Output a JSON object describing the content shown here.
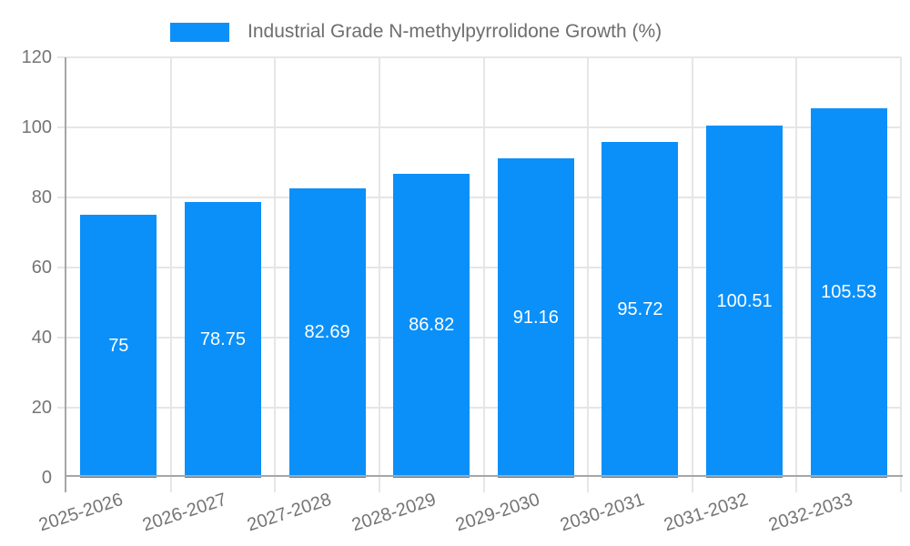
{
  "colors": {
    "bar": "#0b90f9",
    "axis_line": "#a6a6a6",
    "gridline": "#e6e6e6",
    "axis_label_text": "#757575",
    "legend_text": "#6e6e6e",
    "value_label_text": "#ffffff",
    "background": "#ffffff"
  },
  "legend": {
    "label": "Industrial Grade N-methylpyrrolidone Growth (%)"
  },
  "chart_data": {
    "type": "bar",
    "title": "Industrial Grade N-methylpyrrolidone Growth (%)",
    "categories": [
      "2025-2026",
      "2026-2027",
      "2027-2028",
      "2028-2029",
      "2029-2030",
      "2030-2031",
      "2031-2032",
      "2032-2033"
    ],
    "series": [
      {
        "name": "Industrial Grade N-methylpyrrolidone Growth (%)",
        "values": [
          75,
          78.75,
          82.69,
          86.82,
          91.16,
          95.72,
          100.51,
          105.53
        ],
        "value_labels": [
          "75",
          "78.75",
          "82.69",
          "86.82",
          "91.16",
          "95.72",
          "100.51",
          "105.53"
        ]
      }
    ],
    "xlabel": "",
    "ylabel": "",
    "ylim": [
      0,
      120
    ],
    "yticks": [
      0,
      20,
      40,
      60,
      80,
      100,
      120
    ],
    "grid": true,
    "legend_position": "top-left",
    "value_labels_position": "inside-center",
    "xtick_rotation_deg": -18
  }
}
